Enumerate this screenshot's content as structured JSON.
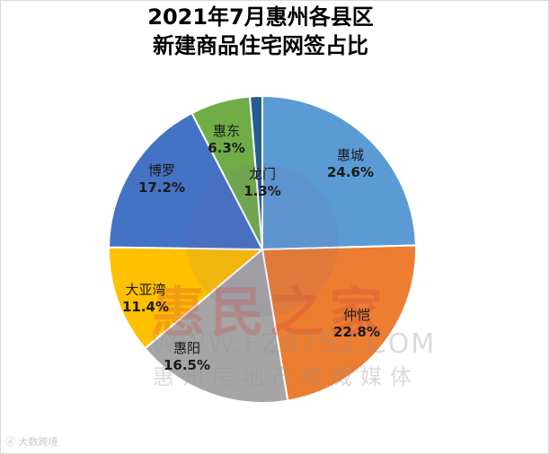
{
  "chart_data": {
    "type": "pie",
    "title": "2021年7月惠州各县区新建商品住宅网签占比",
    "title_lines": [
      "2021年7月惠州各县区",
      "新建商品住宅网签占比"
    ],
    "categories": [
      "惠城",
      "仲恺",
      "惠阳",
      "大亚湾",
      "博罗",
      "惠东",
      "龙门"
    ],
    "values": [
      24.6,
      22.8,
      16.5,
      11.4,
      17.2,
      6.3,
      1.3
    ],
    "labels": [
      "24.6%",
      "22.8%",
      "16.5%",
      "11.4%",
      "17.2%",
      "6.3%",
      "1.3%"
    ],
    "colors": [
      "#5b9bd5",
      "#ed7d31",
      "#a5a5a5",
      "#ffc000",
      "#4472c4",
      "#70ad47",
      "#255e91"
    ],
    "start_angle": "12 o'clock, clockwise",
    "legend": "none",
    "unit": "%"
  },
  "slices": [
    {
      "name": "惠城",
      "pct": "24.6%"
    },
    {
      "name": "仲恺",
      "pct": "22.8%"
    },
    {
      "name": "惠阳",
      "pct": "16.5%"
    },
    {
      "name": "大亚湾",
      "pct": "11.4%"
    },
    {
      "name": "博罗",
      "pct": "17.2%"
    },
    {
      "name": "惠东",
      "pct": "6.3%"
    },
    {
      "name": "龙门",
      "pct": "1.3%"
    }
  ],
  "watermark": {
    "main": "惠民之家",
    "url": "WWW.FZ0752.COM",
    "sub": "惠州房地产权威媒体",
    "corner": "大数跨境"
  }
}
